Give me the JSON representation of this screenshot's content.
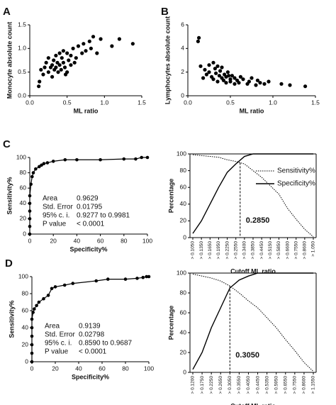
{
  "chart_data": [
    {
      "type": "scatter",
      "panel": "A",
      "x_label": "ML ratio",
      "y_label": "Monocyte absolute count",
      "color": "#000000",
      "x": [
        0.12,
        0.13,
        0.15,
        0.18,
        0.2,
        0.22,
        0.25,
        0.25,
        0.28,
        0.3,
        0.3,
        0.32,
        0.33,
        0.35,
        0.35,
        0.37,
        0.38,
        0.4,
        0.4,
        0.42,
        0.43,
        0.45,
        0.45,
        0.47,
        0.5,
        0.5,
        0.52,
        0.55,
        0.55,
        0.58,
        0.6,
        0.62,
        0.65,
        0.7,
        0.72,
        0.75,
        0.8,
        0.82,
        0.85,
        0.9,
        0.95,
        1.1,
        1.2,
        1.38,
        0.48
      ],
      "values": [
        0.2,
        0.3,
        0.55,
        0.45,
        0.6,
        0.7,
        0.5,
        0.8,
        0.6,
        0.65,
        0.4,
        0.75,
        0.55,
        0.85,
        0.6,
        0.7,
        0.5,
        0.9,
        0.65,
        0.55,
        0.8,
        0.7,
        0.95,
        0.6,
        0.9,
        0.5,
        0.75,
        0.85,
        0.65,
        1.0,
        0.7,
        0.8,
        1.05,
        0.9,
        1.1,
        0.95,
        1.15,
        1.0,
        1.25,
        0.9,
        1.2,
        1.05,
        1.2,
        1.1,
        0.45
      ],
      "xlim": [
        0,
        1.5
      ],
      "xticks": [
        {
          "value": 0,
          "label": "0.0"
        },
        0.5,
        {
          "value": 1,
          "label": "1.0"
        },
        1.5
      ],
      "ylim": [
        0,
        1.5
      ],
      "yticks": [
        {
          "value": 0,
          "label": "0.0"
        },
        0.5,
        {
          "value": 1,
          "label": "1.0"
        },
        1.5
      ]
    },
    {
      "type": "scatter",
      "panel": "B",
      "x_label": "ML ratio",
      "y_label": "Lymphocytes absolute count",
      "color": "#000000",
      "x": [
        0.12,
        0.13,
        0.15,
        0.18,
        0.2,
        0.22,
        0.25,
        0.25,
        0.28,
        0.3,
        0.3,
        0.32,
        0.33,
        0.35,
        0.35,
        0.37,
        0.38,
        0.4,
        0.4,
        0.42,
        0.43,
        0.45,
        0.45,
        0.47,
        0.5,
        0.5,
        0.52,
        0.55,
        0.55,
        0.58,
        0.6,
        0.62,
        0.65,
        0.7,
        0.72,
        0.75,
        0.8,
        0.82,
        0.85,
        0.9,
        0.95,
        1.1,
        1.2,
        1.38,
        0.48
      ],
      "values": [
        4.6,
        4.9,
        2.5,
        1.5,
        2.2,
        1.8,
        2.6,
        2.0,
        1.6,
        2.8,
        1.4,
        2.3,
        1.9,
        2.5,
        1.2,
        1.7,
        2.1,
        1.5,
        2.4,
        1.3,
        1.8,
        1.1,
        1.6,
        2.0,
        1.4,
        1.2,
        1.7,
        1.0,
        1.5,
        1.3,
        1.1,
        1.6,
        1.4,
        1.0,
        1.2,
        1.5,
        0.9,
        1.3,
        1.1,
        1.0,
        1.2,
        1.0,
        0.9,
        0.8,
        1.7
      ],
      "xlim": [
        0,
        1.5
      ],
      "xticks": [
        {
          "value": 0,
          "label": "0.0"
        },
        0.5,
        {
          "value": 1,
          "label": "1.0"
        },
        1.5
      ],
      "ylim": [
        0,
        6
      ],
      "yticks": [
        0,
        2,
        4,
        6
      ]
    },
    {
      "type": "line",
      "panel": "C",
      "x_label": "Specificity%",
      "y_label": "Sensitivity%",
      "color": "#000000",
      "markers": true,
      "x": [
        0,
        0,
        0,
        0,
        0,
        0,
        1,
        2,
        3,
        5,
        8,
        10,
        12,
        15,
        20,
        30,
        40,
        60,
        80,
        90,
        95,
        100
      ],
      "values": [
        0,
        10,
        20,
        30,
        40,
        50,
        65,
        75,
        80,
        85,
        88,
        90,
        92,
        93,
        95,
        97,
        97,
        97,
        98,
        98,
        100,
        100
      ],
      "xlim": [
        0,
        100
      ],
      "xticks": [
        0,
        20,
        40,
        60,
        80,
        100
      ],
      "ylim": [
        0,
        100
      ],
      "yticks": [
        0,
        20,
        40,
        60,
        80,
        100
      ],
      "stats": [
        [
          "Area",
          "0.9629"
        ],
        [
          "Std. Error",
          "0.01795"
        ],
        [
          "95% c. i.",
          "0.9277 to 0.9981"
        ],
        [
          "P value",
          "< 0.0001"
        ]
      ]
    },
    {
      "type": "category_line",
      "x_label": "Cutoff ML ratio",
      "y_label": "Percentage",
      "cutoff_label": "0.2850",
      "legend": "upper right",
      "categories": [
        "> 0.1050",
        "> 0.1350",
        "> 0.1650",
        "> 0.1950",
        "> 0.2250",
        "> 0.2550",
        "> 0.3400",
        "> 0.3850",
        "> 0.4450",
        "> 0.5150",
        "> 0.5850",
        "> 0.6600",
        "> 0.7550",
        "> 0.8600",
        "> 1.050"
      ],
      "series": [
        {
          "name": "Sensitivity%",
          "color": "#000000",
          "style": "dotted",
          "values": [
            99,
            98,
            97,
            96,
            93,
            91,
            88,
            80,
            72,
            62,
            52,
            35,
            22,
            10,
            1
          ]
        },
        {
          "name": "Specificity%",
          "color": "#000000",
          "style": "solid",
          "values": [
            5,
            20,
            40,
            60,
            78,
            88,
            97,
            100,
            100,
            100,
            100,
            100,
            100,
            100,
            100
          ]
        }
      ],
      "ylim": [
        0,
        100
      ],
      "yticks": [
        0,
        20,
        40,
        60,
        80,
        100
      ]
    },
    {
      "type": "line",
      "panel": "D",
      "x_label": "Specificity%",
      "y_label": "Sensitivity%",
      "color": "#000000",
      "markers": true,
      "x": [
        0,
        0,
        0,
        0,
        0,
        0,
        1,
        2,
        4,
        6,
        10,
        14,
        17,
        20,
        28,
        35,
        55,
        65,
        80,
        90,
        95,
        98,
        100
      ],
      "values": [
        0,
        10,
        20,
        30,
        40,
        50,
        58,
        62,
        66,
        70,
        74,
        78,
        86,
        88,
        90,
        92,
        95,
        97,
        97,
        98,
        99,
        100,
        100
      ],
      "xlim": [
        0,
        100
      ],
      "xticks": [
        0,
        20,
        40,
        60,
        80,
        100
      ],
      "ylim": [
        0,
        100
      ],
      "yticks": [
        0,
        20,
        40,
        60,
        80,
        100
      ],
      "stats": [
        [
          "Area",
          "0.9139"
        ],
        [
          "Std. Error",
          "0.02798"
        ],
        [
          "95% c. i.",
          "0.8590 to 0.9687"
        ],
        [
          "P value",
          "< 0.0001"
        ]
      ]
    },
    {
      "type": "category_line",
      "x_label": "Cutoff ML ratio",
      "y_label": "Percentage",
      "cutoff_label": "0.3050",
      "categories": [
        "> 0.1200",
        "> 0.1750",
        "> 0.2250",
        "> 0.2650",
        "> 0.3050",
        "> 0.3550",
        "> 0.4050",
        "> 0.4450",
        "> 0.5350",
        "> 0.5950",
        "> 0.6550",
        "> 0.7550",
        "> 0.8600",
        "> 1.1550"
      ],
      "series": [
        {
          "color": "#000000",
          "style": "dotted",
          "values": [
            99,
            97,
            95,
            92,
            87,
            80,
            72,
            65,
            55,
            45,
            33,
            22,
            10,
            1
          ]
        },
        {
          "color": "#000000",
          "style": "solid",
          "values": [
            3,
            20,
            45,
            65,
            85,
            93,
            97,
            100,
            100,
            100,
            100,
            100,
            100,
            100
          ]
        }
      ],
      "ylim": [
        0,
        100
      ],
      "yticks": [
        0,
        20,
        40,
        60,
        80,
        100
      ]
    }
  ]
}
